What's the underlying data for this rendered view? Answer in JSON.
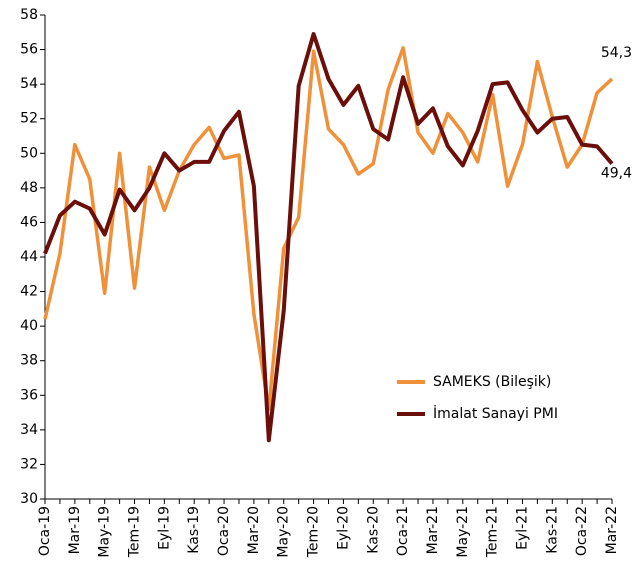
{
  "chart_data": {
    "type": "line",
    "categories": [
      "Oca-19",
      null,
      "Mar-19",
      null,
      "May-19",
      null,
      "Tem-19",
      null,
      "Eyl-19",
      null,
      "Kas-19",
      null,
      "Oca-20",
      null,
      "Mar-20",
      null,
      "May-20",
      null,
      "Tem-20",
      null,
      "Eyl-20",
      null,
      "Kas-20",
      null,
      "Oca-21",
      null,
      "Mar-21",
      null,
      "May-21",
      null,
      "Tem-21",
      null,
      "Eyl-21",
      null,
      "Kas-21",
      null,
      "Oca-22",
      null,
      "Mar-22"
    ],
    "series": [
      {
        "name": "SAMEKS (Bileşik)",
        "color": "#f0913a",
        "values": [
          40.4,
          44.2,
          50.5,
          48.5,
          41.9,
          50.0,
          42.2,
          49.2,
          46.7,
          49.0,
          50.5,
          51.5,
          49.7,
          49.9,
          40.7,
          35.2,
          44.5,
          46.3,
          55.9,
          51.4,
          50.5,
          48.8,
          49.4,
          53.7,
          56.1,
          51.2,
          50.0,
          52.3,
          51.2,
          49.5,
          53.4,
          48.1,
          50.5,
          55.3,
          52.1,
          49.2,
          50.5,
          53.5,
          54.3
        ],
        "value_labels": [
          null,
          null,
          null,
          null,
          null,
          null,
          null,
          null,
          null,
          null,
          null,
          null,
          null,
          null,
          null,
          null,
          null,
          null,
          null,
          null,
          null,
          null,
          null,
          null,
          null,
          null,
          null,
          null,
          null,
          null,
          null,
          null,
          null,
          null,
          null,
          null,
          null,
          null,
          "54,3"
        ]
      },
      {
        "name": "İmalat Sanayi PMI",
        "color": "#6b0f0a",
        "values": [
          44.2,
          46.4,
          47.2,
          46.8,
          45.3,
          47.9,
          46.7,
          48.0,
          50.0,
          49.0,
          49.5,
          49.5,
          51.3,
          52.4,
          48.1,
          33.4,
          40.9,
          53.9,
          56.9,
          54.3,
          52.8,
          53.9,
          51.4,
          50.8,
          54.4,
          51.7,
          52.6,
          50.4,
          49.3,
          51.3,
          54.0,
          54.1,
          52.5,
          51.2,
          52.0,
          52.1,
          50.5,
          50.4,
          49.4
        ],
        "value_labels": [
          null,
          null,
          null,
          null,
          null,
          null,
          null,
          null,
          null,
          null,
          null,
          null,
          null,
          null,
          null,
          null,
          null,
          null,
          null,
          null,
          null,
          null,
          null,
          null,
          null,
          null,
          null,
          null,
          null,
          null,
          null,
          null,
          null,
          null,
          null,
          null,
          null,
          null,
          "49,4"
        ]
      }
    ],
    "ylim": [
      30,
      58
    ],
    "yticks": [
      30,
      32,
      34,
      36,
      38,
      40,
      42,
      44,
      46,
      48,
      50,
      52,
      54,
      56,
      58
    ],
    "grid": false,
    "legend": "lower right"
  }
}
